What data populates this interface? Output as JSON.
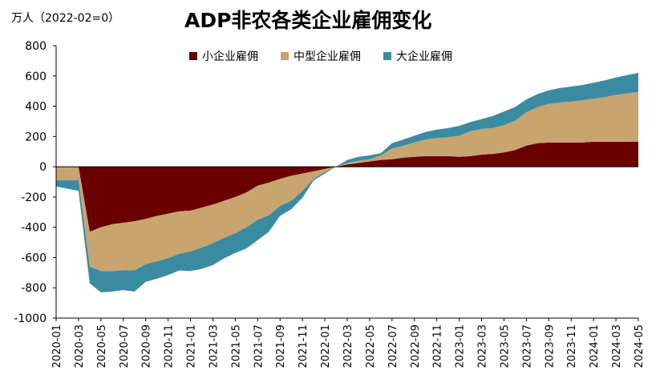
{
  "header": {
    "unit": "万人（2022-02=0）",
    "title": "ADP非农各类企业雇佣变化"
  },
  "chart_data": {
    "type": "area",
    "stacked": true,
    "title": "ADP非农各类企业雇佣变化",
    "ylabel": "万人（2022-02=0）",
    "ylim": [
      -1000,
      800
    ],
    "yticks": [
      -1000,
      -800,
      -600,
      -400,
      -200,
      0,
      200,
      400,
      600,
      800
    ],
    "legend_position": "top",
    "grid": false,
    "x": [
      "2020-01",
      "2020-02",
      "2020-03",
      "2020-04",
      "2020-05",
      "2020-06",
      "2020-07",
      "2020-08",
      "2020-09",
      "2020-10",
      "2020-11",
      "2020-12",
      "2021-01",
      "2021-02",
      "2021-03",
      "2021-04",
      "2021-05",
      "2021-06",
      "2021-07",
      "2021-08",
      "2021-09",
      "2021-10",
      "2021-11",
      "2021-12",
      "2022-01",
      "2022-02",
      "2022-03",
      "2022-04",
      "2022-05",
      "2022-06",
      "2022-07",
      "2022-08",
      "2022-09",
      "2022-10",
      "2022-11",
      "2022-12",
      "2023-01",
      "2023-02",
      "2023-03",
      "2023-04",
      "2023-05",
      "2023-06",
      "2023-07",
      "2023-08",
      "2023-09",
      "2023-10",
      "2023-11",
      "2023-12",
      "2024-01",
      "2024-02",
      "2024-03",
      "2024-04",
      "2024-05"
    ],
    "xtick_labels": [
      "2020-01",
      "2020-03",
      "2020-05",
      "2020-07",
      "2020-09",
      "2020-11",
      "2021-01",
      "2021-03",
      "2021-05",
      "2021-07",
      "2021-09",
      "2021-11",
      "2022-01",
      "2022-03",
      "2022-05",
      "2022-07",
      "2022-09",
      "2022-11",
      "2023-01",
      "2023-03",
      "2023-05",
      "2023-07",
      "2023-09",
      "2023-11",
      "2024-01",
      "2024-03",
      "2024-05"
    ],
    "series": [
      {
        "name": "小企业雇佣",
        "color": "#6b0000",
        "values": [
          0,
          0,
          0,
          -430,
          -400,
          -380,
          -370,
          -360,
          -345,
          -325,
          -310,
          -295,
          -290,
          -270,
          -250,
          -225,
          -200,
          -170,
          -125,
          -105,
          -80,
          -60,
          -45,
          -30,
          -15,
          0,
          15,
          25,
          35,
          45,
          50,
          60,
          65,
          70,
          70,
          70,
          65,
          70,
          80,
          85,
          95,
          110,
          140,
          155,
          160,
          160,
          160,
          160,
          165,
          165,
          165,
          165,
          165
        ]
      },
      {
        "name": "中型企业雇佣",
        "color": "#c8a46e",
        "values": [
          -90,
          -90,
          -90,
          -230,
          -290,
          -310,
          -315,
          -325,
          -300,
          -300,
          -295,
          -280,
          -270,
          -265,
          -255,
          -245,
          -240,
          -230,
          -225,
          -215,
          -180,
          -165,
          -115,
          -50,
          -20,
          0,
          10,
          15,
          15,
          30,
          70,
          80,
          95,
          110,
          120,
          125,
          140,
          165,
          170,
          170,
          180,
          195,
          220,
          240,
          255,
          265,
          270,
          280,
          285,
          295,
          310,
          320,
          330
        ]
      },
      {
        "name": "大企业雇佣",
        "color": "#3a8ba2",
        "values": [
          -40,
          -55,
          -70,
          -110,
          -140,
          -135,
          -130,
          -140,
          -115,
          -115,
          -110,
          -110,
          -130,
          -140,
          -145,
          -135,
          -130,
          -140,
          -135,
          -110,
          -65,
          -55,
          -45,
          -10,
          -10,
          0,
          20,
          25,
          25,
          15,
          35,
          40,
          45,
          50,
          55,
          60,
          65,
          60,
          65,
          80,
          90,
          90,
          85,
          85,
          90,
          95,
          100,
          100,
          105,
          110,
          115,
          120,
          125
        ]
      }
    ]
  }
}
